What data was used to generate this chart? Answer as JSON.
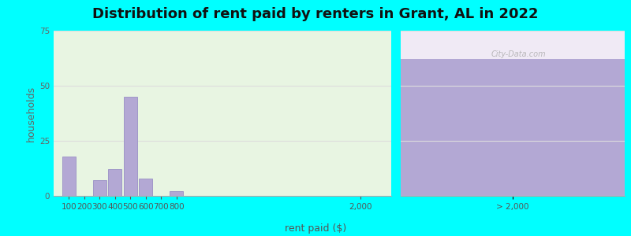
{
  "title": "Distribution of rent paid by renters in Grant, AL in 2022",
  "xlabel": "rent paid ($)",
  "ylabel": "households",
  "bar_color": "#b3a8d4",
  "bar_edge_color": "#a098c8",
  "bg_color": "#00ffff",
  "plot_bg_left": "#e8f5e2",
  "plot_bg_right": "#c8b8dc",
  "plot_bg_right_top": "#f0eaf5",
  "yticks": [
    0,
    25,
    50,
    75
  ],
  "ylim": [
    0,
    75
  ],
  "histogram_bins": [
    100,
    200,
    300,
    400,
    500,
    600,
    700,
    800
  ],
  "histogram_values": [
    18,
    0,
    7,
    12,
    45,
    8,
    0,
    2
  ],
  "gt2000_value": 62,
  "gt2000_label": "> 2,000",
  "mid_tick_label": "2,000",
  "title_fontsize": 13,
  "axis_label_fontsize": 9,
  "tick_fontsize": 7.5,
  "watermark_text": "City-Data.com"
}
